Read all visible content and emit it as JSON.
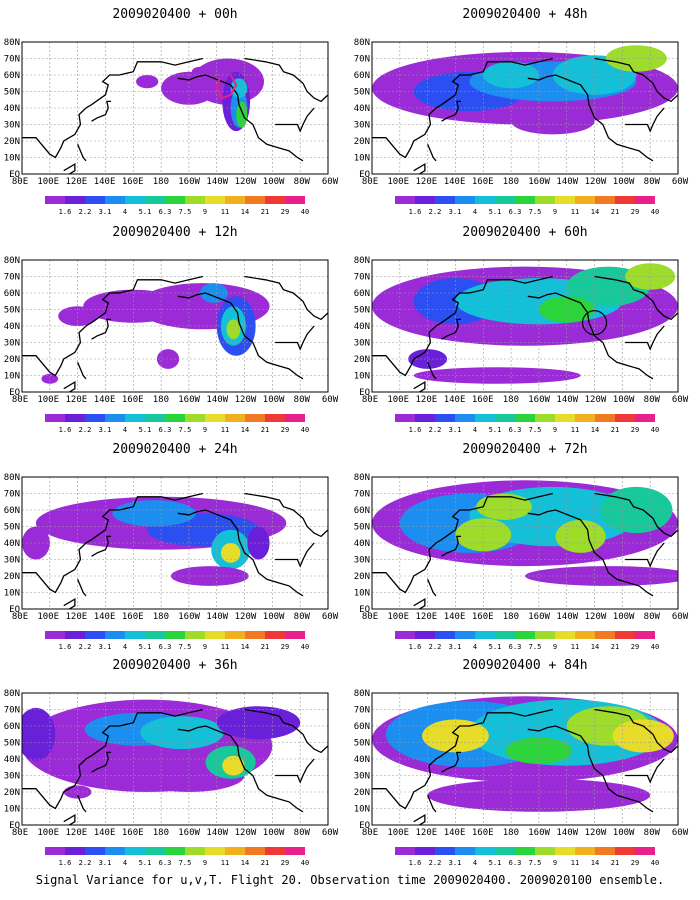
{
  "figure": {
    "caption": "Signal Variance for u,v,T. Flight 20. Observation time 2009020400. 2009020100 ensemble.",
    "lon_labels": [
      "80E",
      "100E",
      "120E",
      "140E",
      "160E",
      "180",
      "160W",
      "140W",
      "120W",
      "100W",
      "80W",
      "60W"
    ],
    "lat_labels": [
      "80N",
      "70N",
      "60N",
      "50N",
      "40N",
      "30N",
      "20N",
      "10N",
      "EQ"
    ],
    "colorbar": {
      "levels": [
        "1.6",
        "2.2",
        "3.1",
        "4",
        "5.1",
        "6.3",
        "7.5",
        "9",
        "11",
        "14",
        "21",
        "29",
        "40"
      ],
      "colors": [
        "#9b2bd6",
        "#6a1fd9",
        "#2b4ff0",
        "#1b8ef0",
        "#14c0d8",
        "#16c89a",
        "#2ad43a",
        "#9ddc2a",
        "#e8dc2a",
        "#f0b020",
        "#f07a22",
        "#f03838",
        "#e8208c"
      ]
    },
    "panels": [
      {
        "id": "00h",
        "title": "2009020400 + 00h"
      },
      {
        "id": "48h",
        "title": "2009020400 + 48h"
      },
      {
        "id": "12h",
        "title": "2009020400 + 12h"
      },
      {
        "id": "60h",
        "title": "2009020400 + 60h"
      },
      {
        "id": "24h",
        "title": "2009020400 + 24h"
      },
      {
        "id": "72h",
        "title": "2009020400 + 72h"
      },
      {
        "id": "36h",
        "title": "2009020400 + 36h"
      },
      {
        "id": "84h",
        "title": "2009020400 + 84h"
      }
    ]
  }
}
